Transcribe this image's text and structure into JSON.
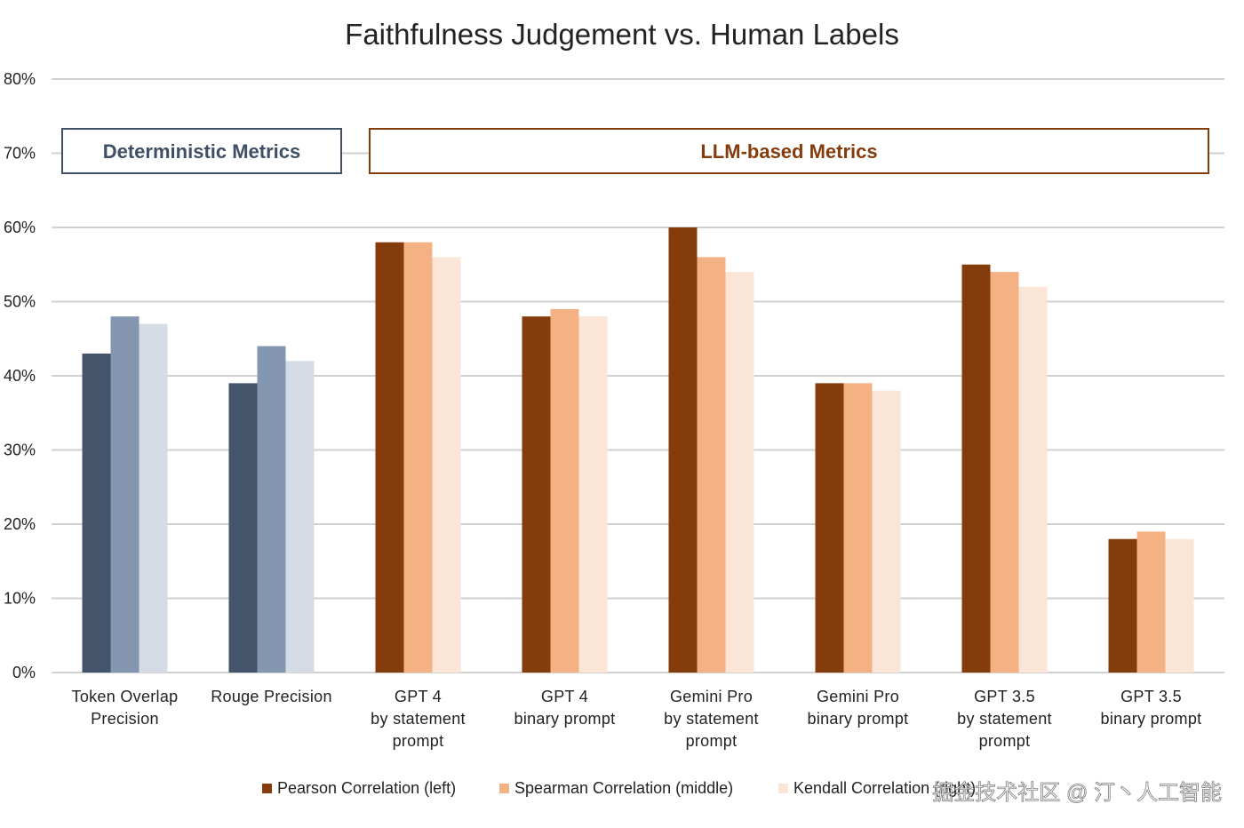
{
  "chart_data": {
    "type": "bar",
    "title": "Faithfulness Judgement vs. Human Labels",
    "xlabel": "",
    "ylabel": "",
    "ylim": [
      0,
      80
    ],
    "yticks": [
      "0%",
      "10%",
      "20%",
      "30%",
      "40%",
      "50%",
      "60%",
      "70%",
      "80%"
    ],
    "grid": true,
    "legend_position": "bottom",
    "categories": [
      [
        "Token Overlap",
        "Precision"
      ],
      [
        "Rouge Precision"
      ],
      [
        "GPT 4",
        "by statement",
        "prompt"
      ],
      [
        "GPT 4",
        "binary prompt"
      ],
      [
        "Gemini Pro",
        "by statement",
        "prompt"
      ],
      [
        "Gemini Pro",
        "binary prompt"
      ],
      [
        "GPT 3.5",
        "by statement",
        "prompt"
      ],
      [
        "GPT 3.5",
        "binary prompt"
      ]
    ],
    "series": [
      {
        "name": "Pearson Correlation (left)",
        "values": [
          43,
          39,
          58,
          48,
          60,
          39,
          55,
          18
        ]
      },
      {
        "name": "Spearman Correlation (middle)",
        "values": [
          48,
          44,
          58,
          49,
          56,
          39,
          54,
          19
        ]
      },
      {
        "name": "Kendall Correlation (right)",
        "values": [
          47,
          42,
          56,
          48,
          54,
          38,
          52,
          18
        ]
      }
    ],
    "group_annotations": [
      {
        "label": "Deterministic Metrics",
        "categories": [
          0,
          1
        ],
        "color": "#3f4f66"
      },
      {
        "label": "LLM-based Metrics",
        "categories": [
          2,
          3,
          4,
          5,
          6,
          7
        ],
        "color": "#843c0c"
      }
    ],
    "colors": {
      "deterministic": [
        "#44546a",
        "#8497b0",
        "#d6dce5"
      ],
      "llm": [
        "#843c0c",
        "#f4b183",
        "#fbe5d6"
      ]
    },
    "legend_colors": [
      "#843c0c",
      "#f4b183",
      "#fbe5d6"
    ]
  },
  "watermark": "掘金技术社区 @ 汀丶人工智能"
}
